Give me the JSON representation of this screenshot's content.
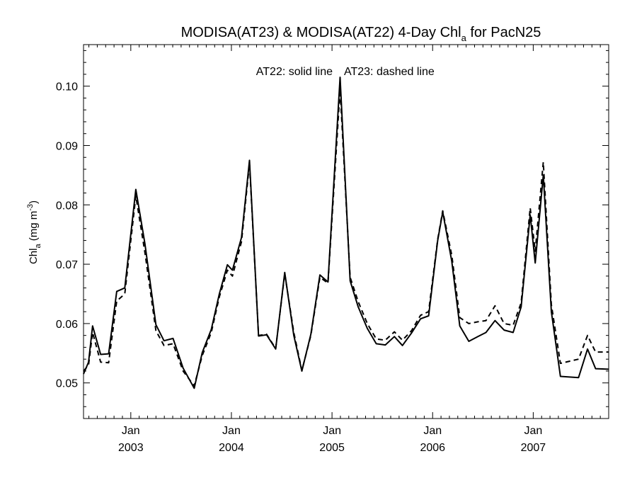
{
  "chart_data": {
    "type": "line",
    "title": "MODISA(AT23) & MODISA(AT22) 4-Day Chl",
    "title_subscript": "a",
    "title_suffix": " for PacN25",
    "ylabel": "Chl",
    "ylabel_subscript": "a",
    "ylabel_units": " (mg m",
    "ylabel_units_superscript": "-3",
    "ylabel_units_close": ")",
    "xlabel": "",
    "annotations": [
      "AT22: solid line",
      "AT23: dashed line"
    ],
    "x_tick_labels": [
      {
        "x": 2003.0,
        "month": "Jan",
        "year": "2003"
      },
      {
        "x": 2004.0,
        "month": "Jan",
        "year": "2004"
      },
      {
        "x": 2005.0,
        "month": "Jan",
        "year": "2005"
      },
      {
        "x": 2006.0,
        "month": "Jan",
        "year": "2006"
      },
      {
        "x": 2007.0,
        "month": "Jan",
        "year": "2007"
      }
    ],
    "y_ticks": [
      "0.05",
      "0.06",
      "0.07",
      "0.08",
      "0.09",
      "0.10"
    ],
    "xlim": [
      2002.53,
      2007.75
    ],
    "ylim": [
      0.044,
      0.107
    ],
    "grid": false,
    "series": [
      {
        "name": "AT22",
        "style": "solid",
        "color": "#000000",
        "points": [
          [
            2002.53,
            0.0515
          ],
          [
            2002.58,
            0.0535
          ],
          [
            2002.62,
            0.0596
          ],
          [
            2002.7,
            0.0548
          ],
          [
            2002.78,
            0.0549
          ],
          [
            2002.86,
            0.0654
          ],
          [
            2002.94,
            0.066
          ],
          [
            2003.05,
            0.0826
          ],
          [
            2003.14,
            0.0735
          ],
          [
            2003.25,
            0.0598
          ],
          [
            2003.33,
            0.0571
          ],
          [
            2003.42,
            0.0575
          ],
          [
            2003.52,
            0.0525
          ],
          [
            2003.63,
            0.0491
          ],
          [
            2003.71,
            0.0551
          ],
          [
            2003.8,
            0.059
          ],
          [
            2003.88,
            0.065
          ],
          [
            2003.96,
            0.0699
          ],
          [
            2004.01,
            0.069
          ],
          [
            2004.1,
            0.0745
          ],
          [
            2004.18,
            0.0875
          ],
          [
            2004.27,
            0.0579
          ],
          [
            2004.35,
            0.0581
          ],
          [
            2004.44,
            0.0557
          ],
          [
            2004.53,
            0.0686
          ],
          [
            2004.62,
            0.058
          ],
          [
            2004.7,
            0.052
          ],
          [
            2004.79,
            0.0582
          ],
          [
            2004.88,
            0.0682
          ],
          [
            2004.96,
            0.067
          ],
          [
            2005.08,
            0.1015
          ],
          [
            2005.18,
            0.0672
          ],
          [
            2005.26,
            0.0628
          ],
          [
            2005.35,
            0.0592
          ],
          [
            2005.44,
            0.0566
          ],
          [
            2005.53,
            0.0564
          ],
          [
            2005.62,
            0.0578
          ],
          [
            2005.7,
            0.0563
          ],
          [
            2005.79,
            0.0584
          ],
          [
            2005.88,
            0.0608
          ],
          [
            2005.96,
            0.0613
          ],
          [
            2006.05,
            0.074
          ],
          [
            2006.1,
            0.0788
          ],
          [
            2006.19,
            0.0705
          ],
          [
            2006.27,
            0.0596
          ],
          [
            2006.36,
            0.057
          ],
          [
            2006.45,
            0.0578
          ],
          [
            2006.53,
            0.0585
          ],
          [
            2006.62,
            0.0605
          ],
          [
            2006.71,
            0.0589
          ],
          [
            2006.8,
            0.0585
          ],
          [
            2006.88,
            0.0628
          ],
          [
            2006.97,
            0.0783
          ],
          [
            2007.02,
            0.0702
          ],
          [
            2007.1,
            0.085
          ],
          [
            2007.18,
            0.062
          ],
          [
            2007.27,
            0.0511
          ],
          [
            2007.45,
            0.0509
          ],
          [
            2007.54,
            0.0557
          ],
          [
            2007.62,
            0.0524
          ],
          [
            2007.75,
            0.0523
          ]
        ]
      },
      {
        "name": "AT23",
        "style": "dashed",
        "color": "#000000",
        "points": [
          [
            2002.53,
            0.052
          ],
          [
            2002.58,
            0.053
          ],
          [
            2002.62,
            0.0585
          ],
          [
            2002.7,
            0.0535
          ],
          [
            2002.78,
            0.0534
          ],
          [
            2002.86,
            0.0638
          ],
          [
            2002.94,
            0.065
          ],
          [
            2003.05,
            0.0815
          ],
          [
            2003.14,
            0.072
          ],
          [
            2003.25,
            0.0588
          ],
          [
            2003.33,
            0.0563
          ],
          [
            2003.42,
            0.0566
          ],
          [
            2003.52,
            0.052
          ],
          [
            2003.63,
            0.0495
          ],
          [
            2003.71,
            0.0546
          ],
          [
            2003.8,
            0.0585
          ],
          [
            2003.88,
            0.0645
          ],
          [
            2003.96,
            0.069
          ],
          [
            2004.01,
            0.068
          ],
          [
            2004.1,
            0.0738
          ],
          [
            2004.18,
            0.087
          ],
          [
            2004.27,
            0.058
          ],
          [
            2004.35,
            0.0582
          ],
          [
            2004.44,
            0.0558
          ],
          [
            2004.53,
            0.0684
          ],
          [
            2004.62,
            0.0585
          ],
          [
            2004.7,
            0.0521
          ],
          [
            2004.79,
            0.058
          ],
          [
            2004.88,
            0.0678
          ],
          [
            2004.96,
            0.0668
          ],
          [
            2005.08,
            0.0995
          ],
          [
            2005.18,
            0.0678
          ],
          [
            2005.26,
            0.0637
          ],
          [
            2005.35,
            0.06
          ],
          [
            2005.44,
            0.0574
          ],
          [
            2005.53,
            0.0572
          ],
          [
            2005.62,
            0.0586
          ],
          [
            2005.7,
            0.0572
          ],
          [
            2005.79,
            0.0588
          ],
          [
            2005.88,
            0.0614
          ],
          [
            2005.96,
            0.062
          ],
          [
            2006.05,
            0.0742
          ],
          [
            2006.1,
            0.079
          ],
          [
            2006.19,
            0.0715
          ],
          [
            2006.27,
            0.061
          ],
          [
            2006.36,
            0.06
          ],
          [
            2006.45,
            0.0603
          ],
          [
            2006.53,
            0.0605
          ],
          [
            2006.62,
            0.063
          ],
          [
            2006.71,
            0.06
          ],
          [
            2006.8,
            0.0597
          ],
          [
            2006.88,
            0.0635
          ],
          [
            2006.97,
            0.0795
          ],
          [
            2007.02,
            0.0722
          ],
          [
            2007.1,
            0.0872
          ],
          [
            2007.18,
            0.0632
          ],
          [
            2007.27,
            0.0533
          ],
          [
            2007.45,
            0.054
          ],
          [
            2007.54,
            0.058
          ],
          [
            2007.62,
            0.0552
          ],
          [
            2007.75,
            0.0552
          ]
        ]
      }
    ]
  }
}
